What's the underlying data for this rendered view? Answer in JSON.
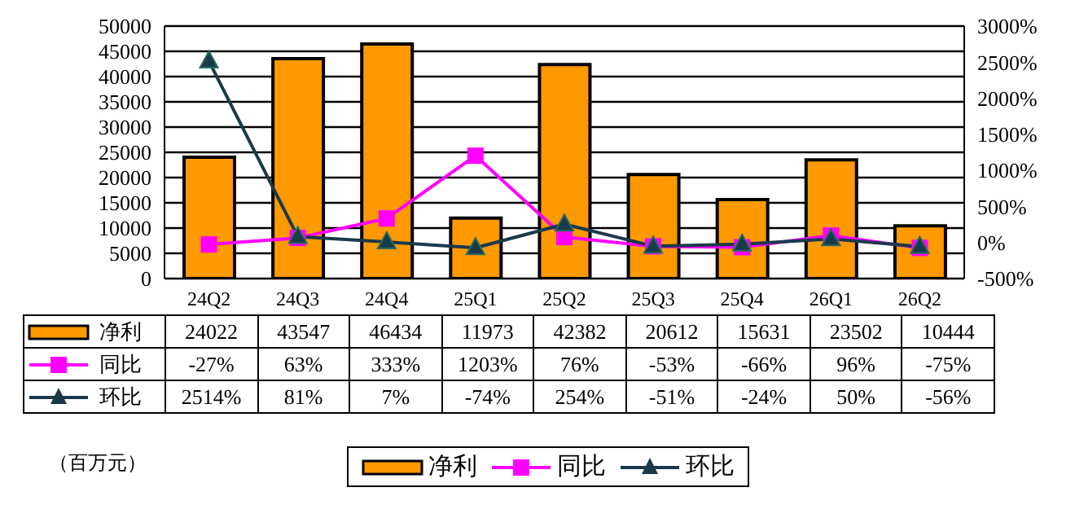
{
  "chart_data": {
    "type": "bar",
    "categories": [
      "24Q2",
      "24Q3",
      "24Q4",
      "25Q1",
      "25Q2",
      "25Q3",
      "25Q4",
      "26Q1",
      "26Q2"
    ],
    "series": [
      {
        "name": "净利",
        "color": "#ff9900",
        "values": [
          24022,
          43547,
          46434,
          11973,
          42382,
          20612,
          15631,
          23502,
          10444
        ],
        "value_labels": [
          "24022",
          "43547",
          "46434",
          "11973",
          "42382",
          "20612",
          "15631",
          "23502",
          "10444"
        ]
      },
      {
        "name": "同比",
        "type": "line",
        "axis": "y2",
        "marker": "square",
        "color": "#ff00ff",
        "values": [
          -27,
          63,
          333,
          1203,
          76,
          -53,
          -66,
          96,
          -75
        ],
        "value_labels": [
          "-27%",
          "63%",
          "333%",
          "1203%",
          "76%",
          "-53%",
          "-66%",
          "96%",
          "-75%"
        ]
      },
      {
        "name": "环比",
        "type": "line",
        "axis": "y2",
        "marker": "triangle",
        "color": "#1a3a4a",
        "values": [
          2514,
          81,
          7,
          -74,
          254,
          -51,
          -24,
          50,
          -56
        ],
        "value_labels": [
          "2514%",
          "81%",
          "7%",
          "-74%",
          "254%",
          "-51%",
          "-24%",
          "50%",
          "-56%"
        ]
      }
    ],
    "ylim": [
      0,
      50000
    ],
    "yticks": [
      0,
      5000,
      10000,
      15000,
      20000,
      25000,
      30000,
      35000,
      40000,
      45000,
      50000
    ],
    "y2lim": [
      -500,
      3000
    ],
    "y2ticks": [
      {
        "value": -500,
        "label": "-500%"
      },
      {
        "value": 0,
        "label": "0%"
      },
      {
        "value": 500,
        "label": "500%"
      },
      {
        "value": 1000,
        "label": "1000%"
      },
      {
        "value": 1500,
        "label": "1500%"
      },
      {
        "value": 2000,
        "label": "2000%"
      },
      {
        "value": 2500,
        "label": "2500%"
      },
      {
        "value": 3000,
        "label": "3000%"
      }
    ],
    "grid": "y",
    "legend": "bottom",
    "annotations": [
      "（百万元）"
    ]
  }
}
